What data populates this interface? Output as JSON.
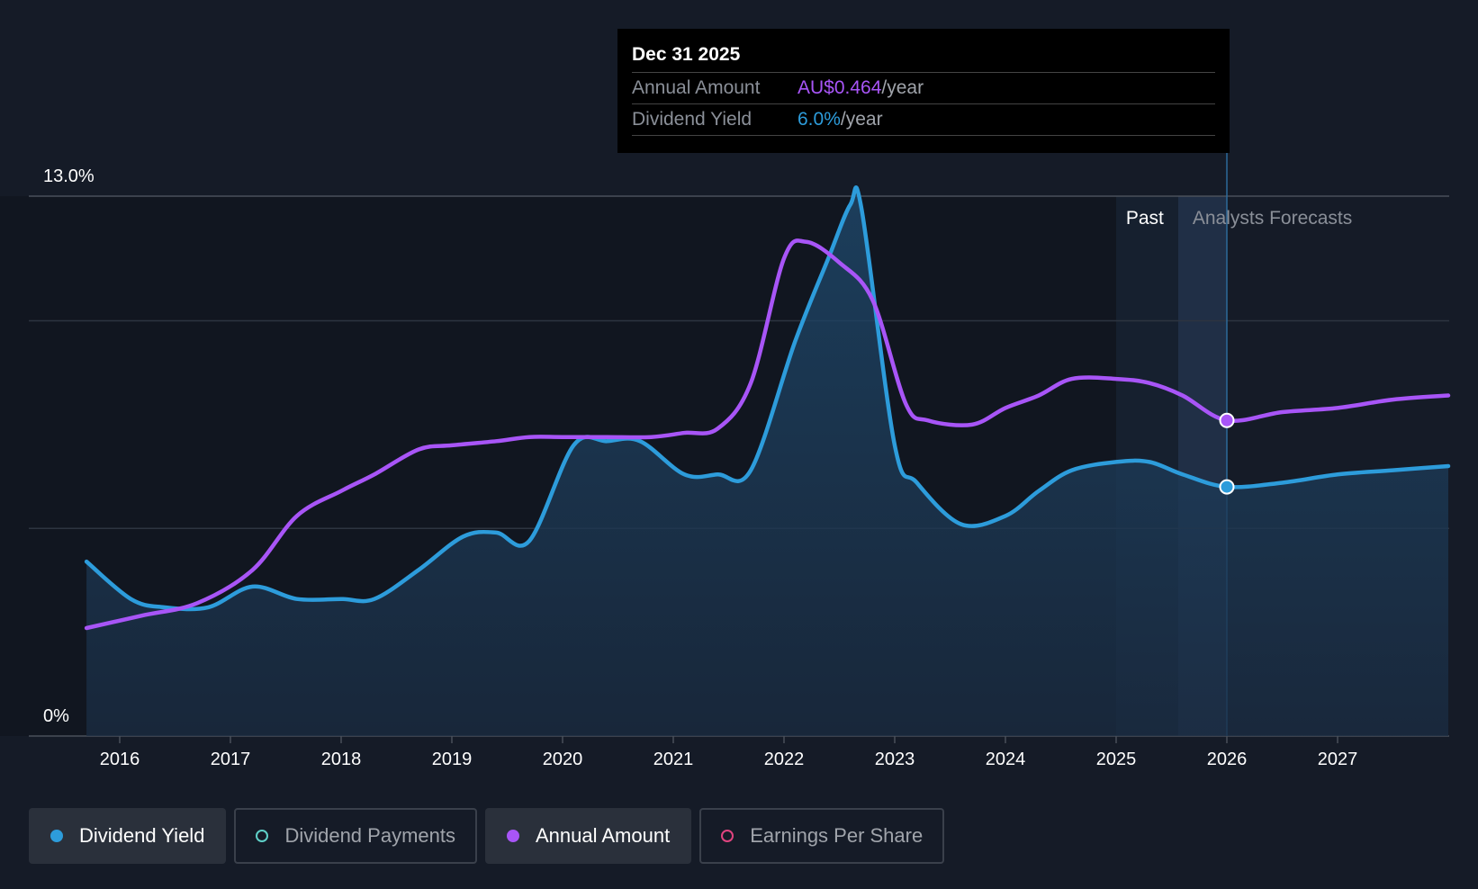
{
  "tooltip": {
    "date": "Dec 31 2025",
    "annual_amount_label": "Annual Amount",
    "annual_amount_value": "AU$0.464",
    "dividend_yield_label": "Dividend Yield",
    "dividend_yield_value": "6.0%",
    "unit": "/year"
  },
  "chart_data": {
    "type": "line",
    "y_axis_labels": [
      "13.0%",
      "0%"
    ],
    "ylim": [
      0,
      13.0
    ],
    "x_ticks": [
      "2016",
      "2017",
      "2018",
      "2019",
      "2020",
      "2021",
      "2022",
      "2023",
      "2024",
      "2025",
      "2026",
      "2027"
    ],
    "regions": {
      "past_label": "Past",
      "forecast_label": "Analysts Forecasts"
    },
    "series": [
      {
        "name": "Dividend Yield",
        "color": "#2d9cdb",
        "points": [
          [
            2015.7,
            4.2
          ],
          [
            2016.1,
            3.3
          ],
          [
            2016.4,
            3.1
          ],
          [
            2016.8,
            3.1
          ],
          [
            2017.2,
            3.6
          ],
          [
            2017.6,
            3.3
          ],
          [
            2018.0,
            3.3
          ],
          [
            2018.3,
            3.3
          ],
          [
            2018.7,
            4.0
          ],
          [
            2019.1,
            4.8
          ],
          [
            2019.4,
            4.9
          ],
          [
            2019.7,
            4.7
          ],
          [
            2020.1,
            7.0
          ],
          [
            2020.4,
            7.1
          ],
          [
            2020.7,
            7.1
          ],
          [
            2021.1,
            6.3
          ],
          [
            2021.4,
            6.3
          ],
          [
            2021.7,
            6.4
          ],
          [
            2022.1,
            9.5
          ],
          [
            2022.4,
            11.5
          ],
          [
            2022.6,
            12.8
          ],
          [
            2022.7,
            12.7
          ],
          [
            2023.0,
            7.0
          ],
          [
            2023.2,
            6.1
          ],
          [
            2023.6,
            5.1
          ],
          [
            2024.0,
            5.3
          ],
          [
            2024.3,
            5.9
          ],
          [
            2024.6,
            6.4
          ],
          [
            2025.0,
            6.6
          ],
          [
            2025.3,
            6.6
          ],
          [
            2025.6,
            6.3
          ],
          [
            2026.0,
            6.0
          ],
          [
            2026.5,
            6.1
          ],
          [
            2027.0,
            6.3
          ],
          [
            2027.5,
            6.4
          ],
          [
            2028.0,
            6.5
          ]
        ]
      },
      {
        "name": "Annual Amount",
        "color": "#a855f7",
        "points": [
          [
            2015.7,
            2.6
          ],
          [
            2016.2,
            2.9
          ],
          [
            2016.7,
            3.2
          ],
          [
            2017.2,
            4.0
          ],
          [
            2017.6,
            5.3
          ],
          [
            2018.0,
            5.9
          ],
          [
            2018.3,
            6.3
          ],
          [
            2018.7,
            6.9
          ],
          [
            2019.0,
            7.0
          ],
          [
            2019.4,
            7.1
          ],
          [
            2019.7,
            7.2
          ],
          [
            2020.0,
            7.2
          ],
          [
            2020.4,
            7.2
          ],
          [
            2020.8,
            7.2
          ],
          [
            2021.1,
            7.3
          ],
          [
            2021.4,
            7.4
          ],
          [
            2021.7,
            8.5
          ],
          [
            2022.0,
            11.5
          ],
          [
            2022.2,
            11.9
          ],
          [
            2022.5,
            11.4
          ],
          [
            2022.8,
            10.5
          ],
          [
            2023.1,
            8.0
          ],
          [
            2023.3,
            7.6
          ],
          [
            2023.7,
            7.5
          ],
          [
            2024.0,
            7.9
          ],
          [
            2024.3,
            8.2
          ],
          [
            2024.6,
            8.6
          ],
          [
            2025.0,
            8.6
          ],
          [
            2025.3,
            8.5
          ],
          [
            2025.6,
            8.2
          ],
          [
            2026.0,
            7.6
          ],
          [
            2026.5,
            7.8
          ],
          [
            2027.0,
            7.9
          ],
          [
            2027.5,
            8.1
          ],
          [
            2028.0,
            8.2
          ]
        ]
      }
    ],
    "highlight_x": 2026.0,
    "grid": true
  },
  "legend": {
    "items": [
      {
        "label": "Dividend Yield",
        "active": true,
        "color": "#2d9cdb",
        "filled": true
      },
      {
        "label": "Dividend Payments",
        "active": false,
        "color": "#5fd0c8",
        "filled": false
      },
      {
        "label": "Annual Amount",
        "active": true,
        "color": "#a855f7",
        "filled": true
      },
      {
        "label": "Earnings Per Share",
        "active": false,
        "color": "#e0447f",
        "filled": false
      }
    ]
  }
}
